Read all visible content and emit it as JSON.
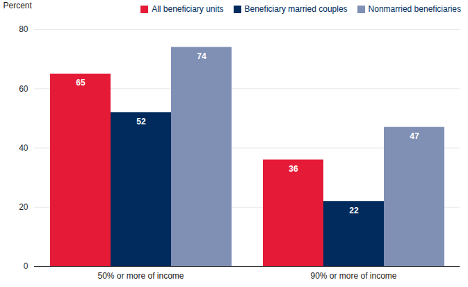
{
  "chart_data": {
    "type": "bar",
    "y_label": "Percent",
    "categories": [
      "50% or more of income",
      "90% or more of income"
    ],
    "series": [
      {
        "name": "All beneficiary units",
        "color": "#e41a37",
        "values": [
          65,
          36
        ]
      },
      {
        "name": "Beneficiary married couples",
        "color": "#002b5c",
        "values": [
          52,
          22
        ]
      },
      {
        "name": "Nonmarried beneficiaries",
        "color": "#8090b5",
        "values": [
          74,
          47
        ]
      }
    ],
    "ylim": [
      0,
      80
    ],
    "yticks": [
      0,
      20,
      40,
      60,
      80
    ],
    "grid": true,
    "data_labels": true,
    "legend": "top-right"
  }
}
